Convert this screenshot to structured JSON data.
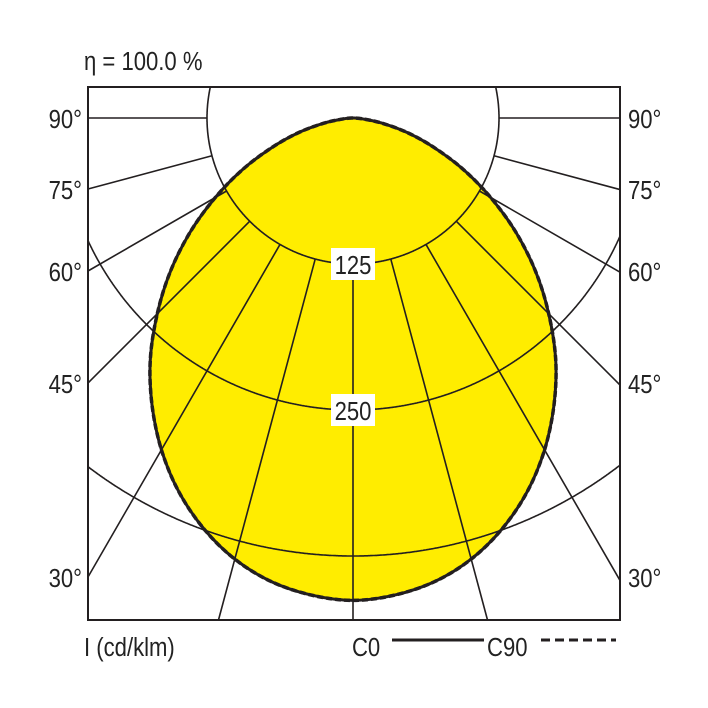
{
  "chart_data": {
    "type": "polar",
    "title": "η = 100.0 %",
    "unit_label": "I (cd/klm)",
    "radial_ticks": [
      125,
      250,
      375
    ],
    "radial_tick_labels": [
      "125",
      "250"
    ],
    "angle_ticks": [
      30,
      45,
      60,
      75,
      90
    ],
    "angle_tick_labels": [
      "30°",
      "45°",
      "60°",
      "75°",
      "90°"
    ],
    "angle_lines_deg": [
      0,
      15,
      30,
      45,
      60,
      75,
      90
    ],
    "fill_color": "#ffed00",
    "grid_color": "#231f20",
    "gamma": [
      0,
      5,
      10,
      15,
      20,
      25,
      30,
      35,
      40,
      45,
      50,
      55,
      60,
      65,
      70,
      75,
      80,
      85,
      90
    ],
    "series": [
      {
        "name": "C0",
        "line": "solid",
        "values": [
          413,
          410,
          403,
          391,
          374,
          353,
          328,
          300,
          270,
          237,
          204,
          170,
          136,
          104,
          74,
          48,
          25,
          8,
          0
        ]
      },
      {
        "name": "C90",
        "line": "dashed",
        "values": [
          413,
          410,
          403,
          391,
          374,
          353,
          328,
          300,
          270,
          237,
          204,
          170,
          136,
          104,
          74,
          48,
          25,
          8,
          0
        ]
      }
    ]
  }
}
